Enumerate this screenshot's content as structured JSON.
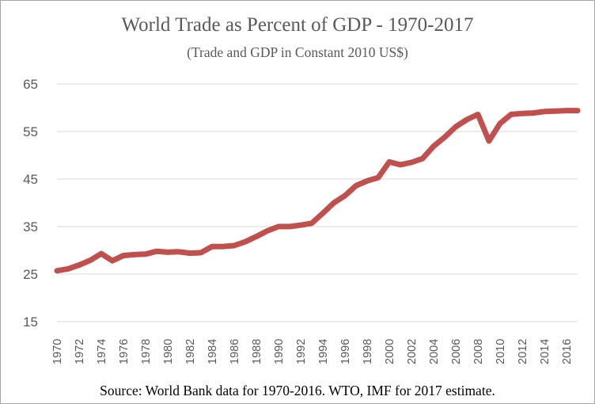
{
  "chart_data": {
    "type": "line",
    "title": "World Trade as Percent of GDP - 1970-2017",
    "subtitle": "(Trade and GDP in Constant 2010 US$)",
    "source": "Source: World Bank data for 1970-2016. WTO, IMF for 2017 estimate.",
    "xlabel": "",
    "ylabel": "",
    "ylim": [
      15,
      65
    ],
    "yticks": [
      "15",
      "25",
      "35",
      "45",
      "55",
      "65"
    ],
    "xticks": [
      "1970",
      "1972",
      "1974",
      "1976",
      "1978",
      "1980",
      "1982",
      "1984",
      "1986",
      "1988",
      "1990",
      "1992",
      "1994",
      "1996",
      "1998",
      "2000",
      "2002",
      "2004",
      "2006",
      "2008",
      "2010",
      "2012",
      "2014",
      "2016"
    ],
    "grid": "horizontal",
    "legend": "none",
    "color": "#c0504d",
    "series": [
      {
        "x": [
          1970,
          1971,
          1972,
          1973,
          1974,
          1975,
          1976,
          1977,
          1978,
          1979,
          1980,
          1981,
          1982,
          1983,
          1984,
          1985,
          1986,
          1987,
          1988,
          1989,
          1990,
          1991,
          1992,
          1993,
          1994,
          1995,
          1996,
          1997,
          1998,
          1999,
          2000,
          2001,
          2002,
          2003,
          2004,
          2005,
          2006,
          2007,
          2008,
          2009,
          2010,
          2011,
          2012,
          2013,
          2014,
          2015,
          2016,
          2017
        ],
        "values": [
          25.7,
          26.1,
          26.9,
          27.9,
          29.3,
          27.8,
          28.9,
          29.1,
          29.2,
          29.8,
          29.6,
          29.7,
          29.4,
          29.5,
          30.8,
          30.8,
          31.0,
          31.8,
          32.9,
          34.1,
          35.0,
          35.0,
          35.3,
          35.7,
          37.8,
          40.0,
          41.5,
          43.6,
          44.6,
          45.3,
          48.6,
          48.0,
          48.5,
          49.3,
          51.9,
          53.8,
          56.0,
          57.5,
          58.6,
          53.0,
          56.7,
          58.6,
          58.8,
          58.9,
          59.2,
          59.3,
          59.4,
          59.4
        ]
      }
    ]
  }
}
